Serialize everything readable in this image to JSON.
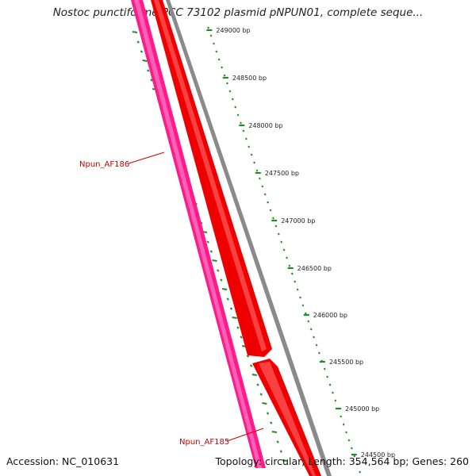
{
  "title": "Nostoc punctiforme PCC 73102 plasmid pNPUN01, complete seque...",
  "footer": {
    "accession": "Accession: NC_010631",
    "topology": "Topology: circular; Length: 354,564 bp; Genes: 260"
  },
  "scale_labels": [
    "249000 bp",
    "248500 bp",
    "248000 bp",
    "247500 bp",
    "247000 bp",
    "246500 bp",
    "246000 bp",
    "245500 bp",
    "245000 bp",
    "244500 bp"
  ],
  "genes": [
    {
      "name": "Npun_AF186",
      "strand": "forward"
    },
    {
      "name": "Npun_AF185",
      "strand": "forward"
    }
  ],
  "colors": {
    "forward_gene": "#ee0000",
    "reverse_gene": "#ff1a8c",
    "backbone": "#808080",
    "ticks": "#228b22",
    "gene_label": "#cc0000"
  }
}
